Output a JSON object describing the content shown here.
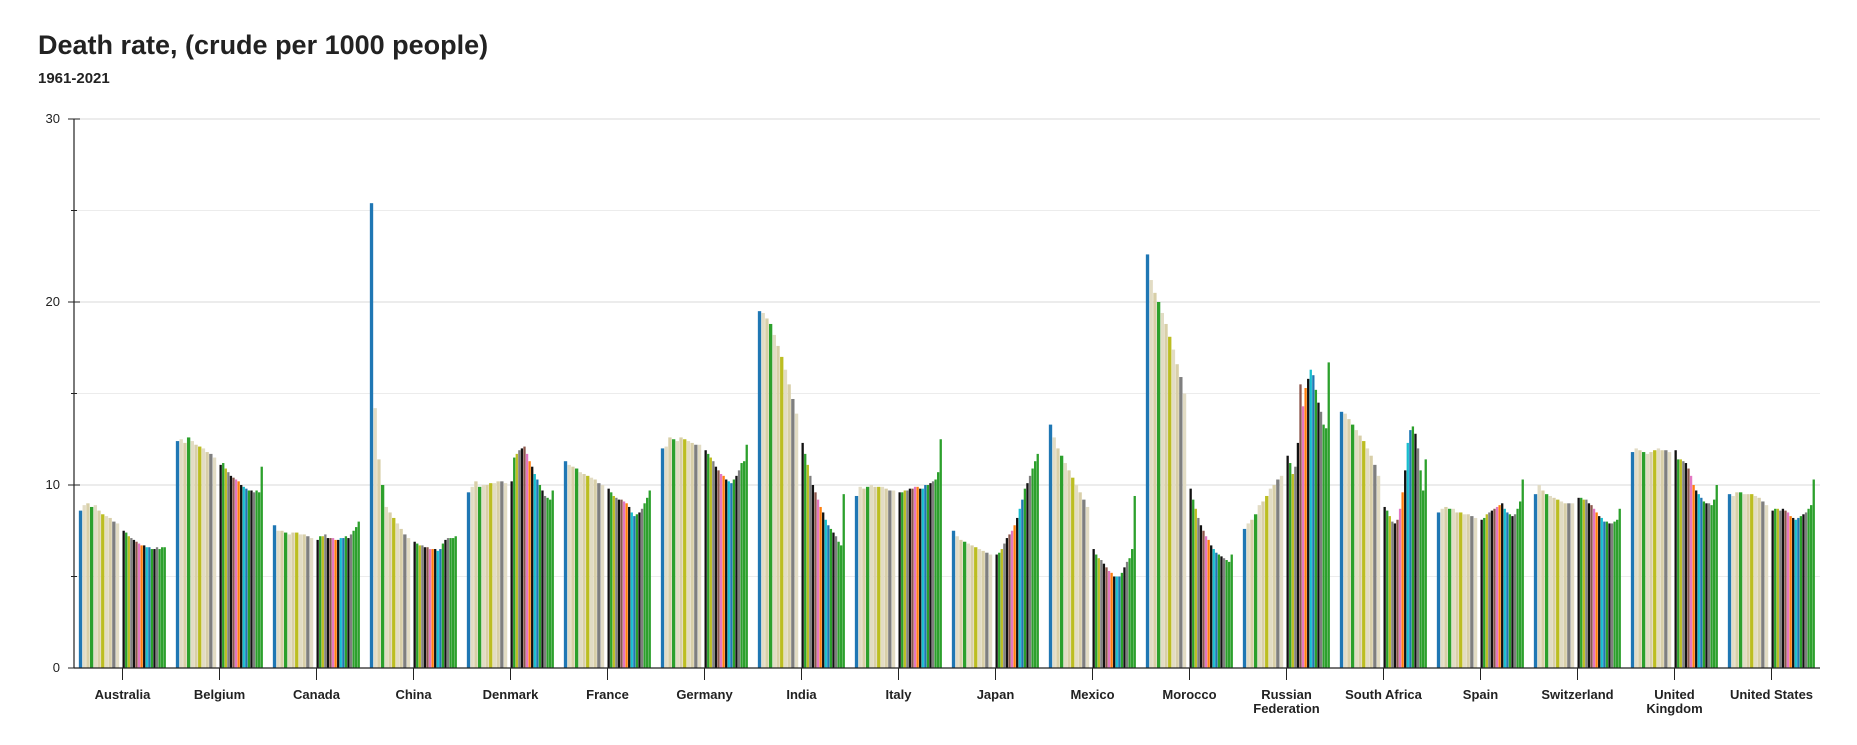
{
  "chart_data": {
    "type": "bar",
    "title": "Death rate, (crude per 1000 people)",
    "subtitle": "1961-2021",
    "xlabel": "",
    "ylabel": "",
    "ylim": [
      0,
      30
    ],
    "yticks": [
      0,
      10,
      20,
      30
    ],
    "grid": true,
    "legend": "none",
    "years": [
      1961,
      2021
    ],
    "categories": [
      "Australia",
      "Belgium",
      "Canada",
      "China",
      "Denmark",
      "France",
      "Germany",
      "India",
      "Italy",
      "Japan",
      "Mexico",
      "Morocco",
      "Russian Federation",
      "South Africa",
      "Spain",
      "Switzerland",
      "United Kingdom",
      "United States"
    ],
    "series": [
      {
        "values": [
          8.6,
          12.4,
          7.8,
          25.4,
          9.6,
          11.3,
          12.0,
          19.5,
          9.4,
          7.5,
          13.3,
          22.6,
          7.6,
          14.0,
          8.5,
          9.5,
          11.8,
          9.5
        ]
      },
      {
        "values": [
          8.9,
          12.5,
          7.5,
          14.2,
          9.9,
          11.1,
          12.1,
          19.4,
          9.9,
          7.2,
          12.6,
          21.2,
          7.9,
          13.9,
          8.7,
          10.0,
          12.0,
          9.4
        ]
      },
      {
        "values": [
          9.0,
          12.3,
          7.5,
          11.4,
          10.2,
          11.0,
          12.6,
          19.1,
          9.8,
          7.0,
          12.0,
          20.5,
          8.1,
          13.6,
          8.8,
          9.7,
          11.9,
          9.6
        ]
      },
      {
        "values": [
          8.8,
          12.6,
          7.4,
          10.0,
          9.9,
          10.9,
          12.5,
          18.8,
          9.9,
          6.9,
          11.6,
          20.0,
          8.4,
          13.3,
          8.7,
          9.5,
          11.8,
          9.6
        ]
      },
      {
        "values": [
          8.9,
          12.4,
          7.3,
          8.8,
          10.0,
          10.7,
          12.4,
          18.2,
          10.0,
          6.8,
          11.2,
          19.4,
          8.9,
          13.0,
          8.7,
          9.4,
          11.7,
          9.5
        ]
      },
      {
        "values": [
          8.6,
          12.2,
          7.4,
          8.5,
          10.0,
          10.6,
          12.6,
          17.6,
          9.9,
          6.7,
          10.8,
          18.8,
          9.1,
          12.7,
          8.5,
          9.3,
          11.8,
          9.5
        ]
      },
      {
        "values": [
          8.4,
          12.1,
          7.4,
          8.2,
          10.1,
          10.5,
          12.5,
          17.0,
          9.9,
          6.6,
          10.4,
          18.1,
          9.4,
          12.4,
          8.5,
          9.2,
          11.9,
          9.5
        ]
      },
      {
        "values": [
          8.3,
          12.0,
          7.3,
          7.9,
          10.1,
          10.4,
          12.4,
          16.3,
          9.9,
          6.5,
          10.0,
          17.4,
          9.8,
          12.0,
          8.4,
          9.1,
          12.0,
          9.4
        ]
      },
      {
        "values": [
          8.2,
          11.8,
          7.3,
          7.6,
          10.2,
          10.3,
          12.3,
          15.5,
          9.8,
          6.4,
          9.6,
          16.6,
          10.0,
          11.6,
          8.4,
          9.0,
          11.9,
          9.3
        ]
      },
      {
        "values": [
          8.0,
          11.7,
          7.2,
          7.3,
          10.2,
          10.1,
          12.2,
          14.7,
          9.7,
          6.3,
          9.2,
          15.9,
          10.3,
          11.1,
          8.3,
          9.0,
          11.9,
          9.1
        ]
      },
      {
        "values": [
          7.9,
          11.5,
          7.1,
          7.1,
          10.1,
          10.0,
          12.2,
          13.9,
          9.7,
          6.2,
          8.8,
          15.0,
          10.5,
          10.5,
          8.2,
          9.0,
          11.8,
          8.9
        ]
      },
      {
        "values": [
          7.5,
          11.1,
          7.0,
          6.9,
          10.2,
          9.8,
          11.9,
          12.3,
          9.6,
          6.2,
          6.5,
          9.8,
          11.6,
          8.8,
          8.1,
          9.3,
          11.9,
          8.6
        ]
      },
      {
        "values": [
          7.4,
          11.2,
          7.2,
          6.8,
          11.5,
          9.6,
          11.7,
          11.7,
          9.6,
          6.3,
          6.2,
          9.2,
          11.2,
          8.6,
          8.2,
          9.3,
          11.4,
          8.7
        ]
      },
      {
        "values": [
          7.2,
          10.9,
          7.2,
          6.7,
          11.7,
          9.4,
          11.5,
          11.1,
          9.7,
          6.5,
          6.0,
          8.7,
          10.6,
          8.3,
          8.4,
          9.2,
          11.4,
          8.7
        ]
      },
      {
        "values": [
          7.1,
          10.7,
          7.3,
          6.7,
          11.9,
          9.3,
          11.3,
          10.5,
          9.7,
          6.8,
          5.9,
          8.2,
          11.0,
          8.0,
          8.5,
          9.2,
          11.3,
          8.6
        ]
      },
      {
        "values": [
          7.0,
          10.5,
          7.1,
          6.6,
          12.0,
          9.2,
          11.0,
          10.0,
          9.8,
          7.1,
          5.7,
          7.8,
          12.3,
          7.9,
          8.6,
          9.0,
          11.2,
          8.7
        ]
      },
      {
        "values": [
          6.9,
          10.4,
          7.1,
          6.6,
          12.1,
          9.2,
          10.8,
          9.6,
          9.8,
          7.3,
          5.5,
          7.5,
          15.5,
          8.1,
          8.7,
          8.9,
          10.9,
          8.6
        ]
      },
      {
        "values": [
          6.8,
          10.3,
          7.1,
          6.5,
          11.7,
          9.1,
          10.6,
          9.2,
          9.9,
          7.5,
          5.3,
          7.2,
          14.3,
          8.7,
          8.8,
          8.7,
          10.5,
          8.5
        ]
      },
      {
        "values": [
          6.7,
          10.2,
          7.0,
          6.5,
          11.3,
          9.0,
          10.5,
          8.8,
          9.9,
          7.8,
          5.2,
          7.0,
          15.3,
          9.6,
          8.9,
          8.5,
          10.0,
          8.3
        ]
      },
      {
        "values": [
          6.7,
          10.0,
          7.0,
          6.5,
          11.0,
          8.8,
          10.3,
          8.5,
          9.8,
          8.2,
          5.0,
          6.7,
          15.8,
          10.8,
          9.0,
          8.3,
          9.7,
          8.2
        ]
      },
      {
        "values": [
          6.6,
          9.9,
          7.1,
          6.4,
          10.6,
          8.5,
          10.2,
          8.1,
          9.8,
          8.7,
          5.0,
          6.5,
          16.3,
          12.3,
          8.7,
          8.2,
          9.5,
          8.1
        ]
      },
      {
        "values": [
          6.6,
          9.8,
          7.1,
          6.5,
          10.3,
          8.3,
          10.1,
          7.8,
          10.0,
          9.2,
          5.0,
          6.3,
          16.0,
          13.0,
          8.5,
          8.0,
          9.3,
          8.2
        ]
      },
      {
        "values": [
          6.5,
          9.7,
          7.2,
          6.8,
          10.0,
          8.4,
          10.3,
          7.6,
          10.0,
          9.8,
          5.2,
          6.2,
          15.2,
          13.2,
          8.4,
          8.0,
          9.1,
          8.3
        ]
      },
      {
        "values": [
          6.5,
          9.7,
          7.1,
          7.0,
          9.7,
          8.5,
          10.5,
          7.4,
          10.1,
          10.1,
          5.5,
          6.1,
          14.5,
          12.8,
          8.3,
          7.9,
          9.0,
          8.4
        ]
      },
      {
        "values": [
          6.6,
          9.6,
          7.3,
          7.1,
          9.4,
          8.7,
          10.8,
          7.2,
          10.2,
          10.5,
          5.8,
          6.0,
          14.0,
          12.0,
          8.4,
          7.9,
          9.0,
          8.5
        ]
      },
      {
        "values": [
          6.5,
          9.7,
          7.5,
          7.1,
          9.3,
          9.0,
          11.2,
          6.9,
          10.3,
          10.9,
          6.0,
          5.9,
          13.3,
          10.8,
          8.7,
          8.0,
          8.9,
          8.7
        ]
      },
      {
        "values": [
          6.6,
          9.6,
          7.7,
          7.1,
          9.2,
          9.3,
          11.3,
          6.7,
          10.7,
          11.3,
          6.5,
          5.8,
          13.1,
          9.7,
          9.1,
          8.1,
          9.2,
          8.9
        ]
      },
      {
        "values": [
          6.6,
          11.0,
          8.0,
          7.2,
          9.7,
          9.7,
          12.2,
          9.5,
          12.5,
          11.7,
          9.4,
          6.2,
          16.7,
          11.4,
          10.3,
          8.7,
          10.0,
          10.3
        ]
      }
    ]
  }
}
